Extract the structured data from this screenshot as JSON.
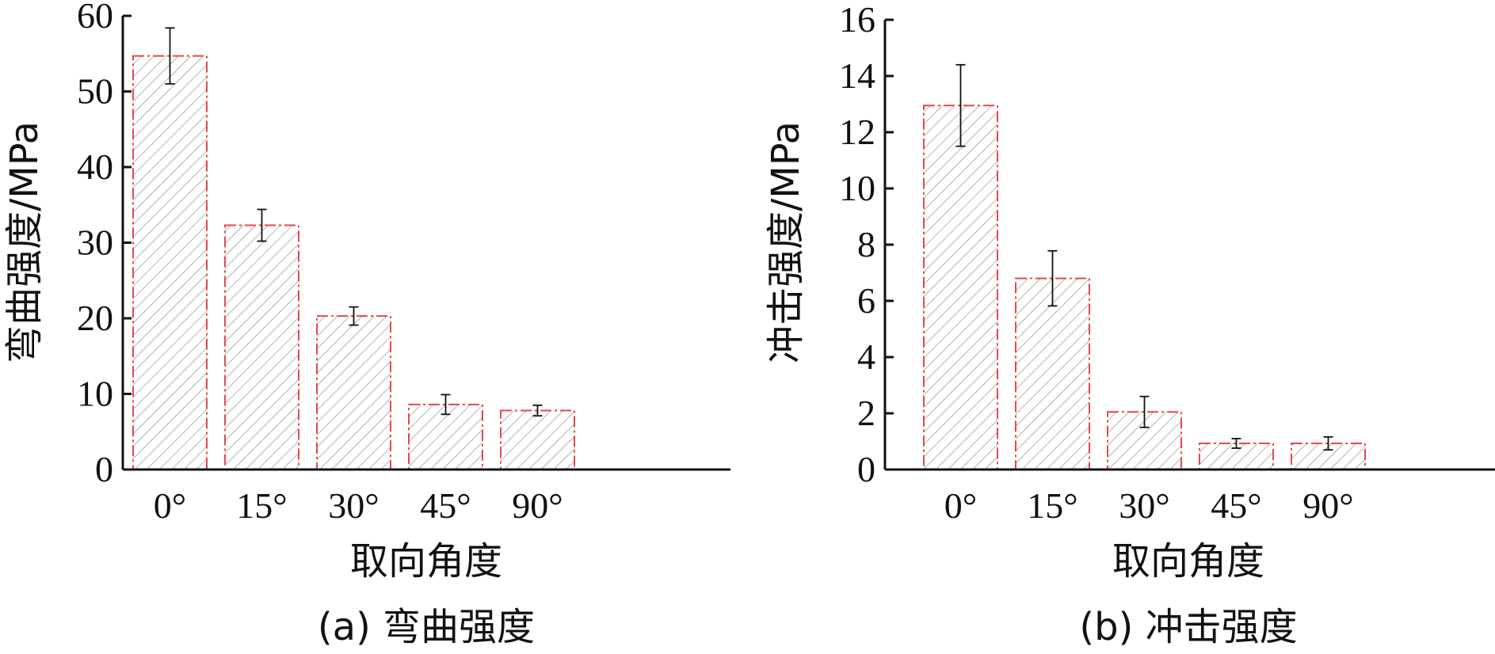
{
  "chart_data": [
    {
      "type": "bar",
      "categories": [
        "0°",
        "15°",
        "30°",
        "45°",
        "90°"
      ],
      "values": [
        54.7,
        32.3,
        20.3,
        8.6,
        7.8
      ],
      "errors": [
        3.7,
        2.1,
        1.2,
        1.3,
        0.7
      ],
      "xlabel": "取向角度",
      "ylabel": "弯曲强度/MPa",
      "caption": "(a) 弯曲强度",
      "ylim": [
        0,
        60
      ],
      "yticks": [
        0,
        10,
        20,
        30,
        40,
        50,
        60
      ],
      "ytick_labels": [
        "0",
        "10",
        "20",
        "30",
        "40",
        "50",
        "60"
      ],
      "grid": false,
      "bar_color": "#e8474a",
      "bar_pattern": "diagonal-hatch"
    },
    {
      "type": "bar",
      "categories": [
        "0°",
        "15°",
        "30°",
        "45°",
        "90°"
      ],
      "values": [
        12.95,
        6.8,
        2.05,
        0.93,
        0.93
      ],
      "errors": [
        1.45,
        0.98,
        0.55,
        0.17,
        0.23
      ],
      "xlabel": "取向角度",
      "ylabel": "冲击强度/MPa",
      "caption": "(b) 冲击强度",
      "ylim": [
        0,
        16
      ],
      "yticks": [
        0,
        2,
        4,
        6,
        8,
        10,
        12,
        14,
        16
      ],
      "ytick_labels": [
        "0",
        "2",
        "4",
        "6",
        "8",
        "10",
        "12",
        "14",
        "16"
      ],
      "grid": false,
      "bar_color": "#e8474a",
      "bar_pattern": "diagonal-hatch"
    }
  ]
}
